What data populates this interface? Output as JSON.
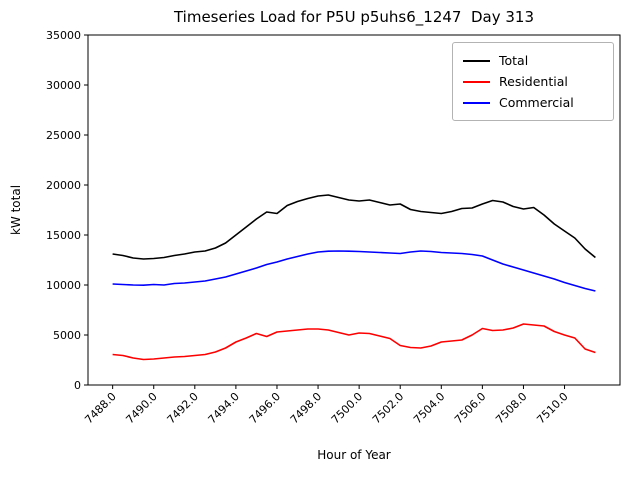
{
  "window": {
    "title": "Timeseries Load for P5U p5uhs6_1247  Day 313"
  },
  "chart_data": {
    "type": "line",
    "title": "Timeseries Load for P5U p5uhs6_1247  Day 313",
    "xlabel": "Hour of Year",
    "ylabel": "kW total",
    "xlim": [
      7486.8,
      7512.7
    ],
    "ylim": [
      0,
      35000
    ],
    "grid": false,
    "legend_position": "upper right",
    "xticks": [
      7488.0,
      7490.0,
      7492.0,
      7494.0,
      7496.0,
      7498.0,
      7500.0,
      7502.0,
      7504.0,
      7506.0,
      7508.0,
      7510.0
    ],
    "xtick_labels": [
      "7488.0",
      "7490.0",
      "7492.0",
      "7494.0",
      "7496.0",
      "7498.0",
      "7500.0",
      "7502.0",
      "7504.0",
      "7506.0",
      "7508.0",
      "7510.0"
    ],
    "yticks": [
      0,
      5000,
      10000,
      15000,
      20000,
      25000,
      30000,
      35000
    ],
    "ytick_labels": [
      "0",
      "5000",
      "10000",
      "15000",
      "20000",
      "25000",
      "30000",
      "35000"
    ],
    "x": [
      7488.0,
      7488.5,
      7489.0,
      7489.5,
      7490.0,
      7490.5,
      7491.0,
      7491.5,
      7492.0,
      7492.5,
      7493.0,
      7493.5,
      7494.0,
      7494.5,
      7495.0,
      7495.5,
      7496.0,
      7496.5,
      7497.0,
      7497.5,
      7498.0,
      7498.5,
      7499.0,
      7499.5,
      7500.0,
      7500.5,
      7501.0,
      7501.5,
      7502.0,
      7502.5,
      7503.0,
      7503.5,
      7504.0,
      7504.5,
      7505.0,
      7505.5,
      7506.0,
      7506.5,
      7507.0,
      7507.5,
      7508.0,
      7508.5,
      7509.0,
      7509.5,
      7510.0,
      7510.5,
      7511.0,
      7511.5
    ],
    "series": [
      {
        "name": "Total",
        "color": "#000000",
        "values": [
          13100,
          12950,
          12700,
          12600,
          12650,
          12750,
          12950,
          13100,
          13300,
          13400,
          13700,
          14200,
          15000,
          15800,
          16600,
          17300,
          17150,
          17950,
          18350,
          18650,
          18900,
          19000,
          18750,
          18500,
          18400,
          18500,
          18250,
          18000,
          18100,
          17550,
          17350,
          17250,
          17150,
          17350,
          17650,
          17700,
          18100,
          18450,
          18300,
          17850,
          17600,
          17750,
          17000,
          16100,
          15400,
          14700,
          13600,
          12750
        ]
      },
      {
        "name": "Residential",
        "color": "#ff0000",
        "values": [
          3050,
          2950,
          2700,
          2550,
          2600,
          2700,
          2800,
          2850,
          2950,
          3050,
          3300,
          3700,
          4300,
          4700,
          5150,
          4850,
          5300,
          5400,
          5500,
          5600,
          5600,
          5500,
          5250,
          5000,
          5200,
          5150,
          4900,
          4650,
          3950,
          3750,
          3700,
          3900,
          4300,
          4400,
          4500,
          5000,
          5650,
          5450,
          5500,
          5700,
          6100,
          6000,
          5900,
          5350,
          5000,
          4700,
          3600,
          3250
        ]
      },
      {
        "name": "Commercial",
        "color": "#0000ff",
        "values": [
          10100,
          10050,
          10000,
          9980,
          10050,
          10000,
          10150,
          10200,
          10300,
          10400,
          10600,
          10800,
          11100,
          11400,
          11700,
          12050,
          12300,
          12600,
          12850,
          13100,
          13300,
          13380,
          13400,
          13380,
          13350,
          13300,
          13250,
          13200,
          13150,
          13300,
          13400,
          13350,
          13250,
          13200,
          13150,
          13050,
          12900,
          12500,
          12100,
          11800,
          11500,
          11200,
          10900,
          10600,
          10250,
          9950,
          9650,
          9400
        ]
      }
    ]
  }
}
